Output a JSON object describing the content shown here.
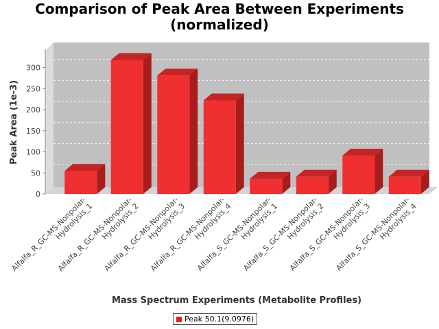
{
  "chart_data": {
    "type": "bar",
    "title": "Comparison of Peak Area Between Experiments\n(normalized)",
    "xlabel": "Mass Spectrum Experiments (Metabolite Profiles)",
    "ylabel": "Peak Area (1e-3)",
    "ylim": [
      0,
      340
    ],
    "yticks": [
      0,
      50,
      100,
      150,
      200,
      250,
      300
    ],
    "categories": [
      "Alfalfa_R_GC-MS-Nonpolar-Hydrolysis_1",
      "Alfalfa_R_GC-MS-Nonpolar-Hydrolysis_2",
      "Alfalfa_R_GC-MS-Nonpolar-Hydrolysis_3",
      "Alfalfa_R_GC-MS-Nonpolar-Hydrolysis_4",
      "Alfalfa_S_GC-MS-Nonpolar-Hydrolysis_1",
      "Alfalfa_S_GC-MS-Nonpolar-Hydrolysis_2",
      "Alfalfa_S_GC-MS-Nonpolar-Hydrolysis_3",
      "Alfalfa_S_GC-MS-Nonpolar-Hydrolysis_4"
    ],
    "category_lines": [
      [
        "Alfalfa_R_GC-MS-Nonpolar-",
        "Hydrolysis_1"
      ],
      [
        "Alfalfa_R_GC-MS-Nonpolar-",
        "Hydrolysis_2"
      ],
      [
        "Alfalfa_R_GC-MS-Nonpolar-",
        "Hydrolysis_3"
      ],
      [
        "Alfalfa_R_GC-MS-Nonpolar-",
        "Hydrolysis_4"
      ],
      [
        "Alfalfa_S_GC-MS-Nonpolar-",
        "Hydrolysis_1"
      ],
      [
        "Alfalfa_S_GC-MS-Nonpolar-",
        "Hydrolysis_2"
      ],
      [
        "Alfalfa_S_GC-MS-Nonpolar-",
        "Hydrolysis_3"
      ],
      [
        "Alfalfa_S_GC-MS-Nonpolar-",
        "Hydrolysis_4"
      ]
    ],
    "series": [
      {
        "name": "Peak 50.1(9.0976)",
        "values": [
          55,
          318,
          281,
          222,
          36,
          41,
          91,
          41
        ]
      }
    ],
    "grid": true,
    "legend_position": "bottom",
    "colors": {
      "bar_front": "#f03030",
      "bar_top": "#c42424",
      "bar_side": "#a81c1c",
      "plot_back": "#c0c0c0",
      "plot_wall": "#dcdcdc",
      "plot_floor": "#d4d4d4"
    }
  }
}
